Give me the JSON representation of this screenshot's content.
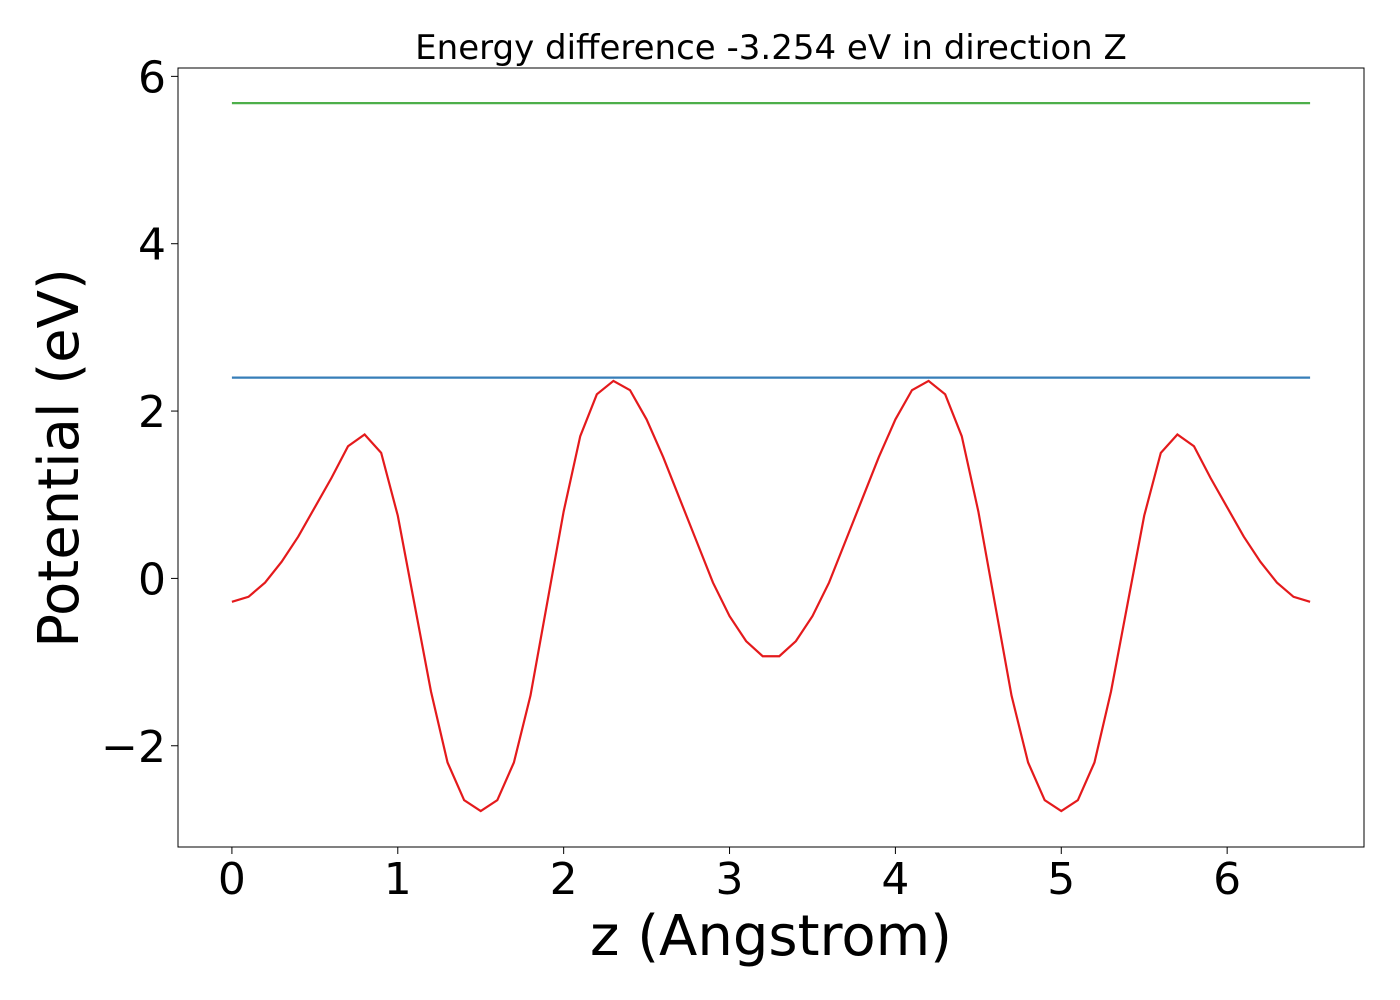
{
  "chart_data": {
    "type": "line",
    "title": "Energy difference -3.254 eV in direction Z",
    "xlabel": "z (Angstrom)",
    "ylabel": "Potential (eV)",
    "xlim": [
      -0.325,
      6.825
    ],
    "ylim": [
      -3.21,
      6.1
    ],
    "xticks": [
      0,
      1,
      2,
      3,
      4,
      5,
      6
    ],
    "yticks": [
      {
        "value": -2,
        "label": "−2"
      },
      0,
      2,
      4,
      6
    ],
    "series": [
      {
        "color": "#e41a1c",
        "x": [
          0,
          0.1,
          0.2,
          0.3,
          0.4,
          0.5,
          0.6,
          0.7,
          0.8,
          0.9,
          1.0,
          1.1,
          1.2,
          1.3,
          1.4,
          1.5,
          1.6,
          1.7,
          1.8,
          1.9,
          2.0,
          2.1,
          2.2,
          2.3,
          2.4,
          2.5,
          2.6,
          2.7,
          2.8,
          2.9,
          3.0,
          3.1,
          3.2,
          3.3,
          3.4,
          3.5,
          3.6,
          3.7,
          3.8,
          3.9,
          4.0,
          4.1,
          4.2,
          4.3,
          4.4,
          4.5,
          4.6,
          4.7,
          4.8,
          4.9,
          5.0,
          5.1,
          5.2,
          5.3,
          5.4,
          5.5,
          5.6,
          5.7,
          5.8,
          5.9,
          6.0,
          6.1,
          6.2,
          6.3,
          6.4,
          6.5
        ],
        "values": [
          -0.28,
          -0.22,
          -0.05,
          0.2,
          0.5,
          0.85,
          1.2,
          1.58,
          1.72,
          1.5,
          0.75,
          -0.3,
          -1.35,
          -2.2,
          -2.65,
          -2.78,
          -2.65,
          -2.2,
          -1.4,
          -0.3,
          0.8,
          1.7,
          2.2,
          2.36,
          2.25,
          1.9,
          1.45,
          0.95,
          0.45,
          -0.05,
          -0.45,
          -0.75,
          -0.93,
          -0.93,
          -0.75,
          -0.45,
          -0.05,
          0.45,
          0.95,
          1.45,
          1.9,
          2.25,
          2.36,
          2.2,
          1.7,
          0.8,
          -0.3,
          -1.4,
          -2.2,
          -2.65,
          -2.78,
          -2.65,
          -2.2,
          -1.35,
          -0.3,
          0.75,
          1.5,
          1.72,
          1.58,
          1.2,
          0.85,
          0.5,
          0.2,
          -0.05,
          -0.22,
          -0.28
        ]
      },
      {
        "color": "#377eb8",
        "x": [
          0,
          6.5
        ],
        "values": [
          2.4,
          2.4
        ]
      },
      {
        "color": "#4daf4a",
        "x": [
          0,
          6.5
        ],
        "values": [
          5.68,
          5.68
        ]
      }
    ]
  }
}
